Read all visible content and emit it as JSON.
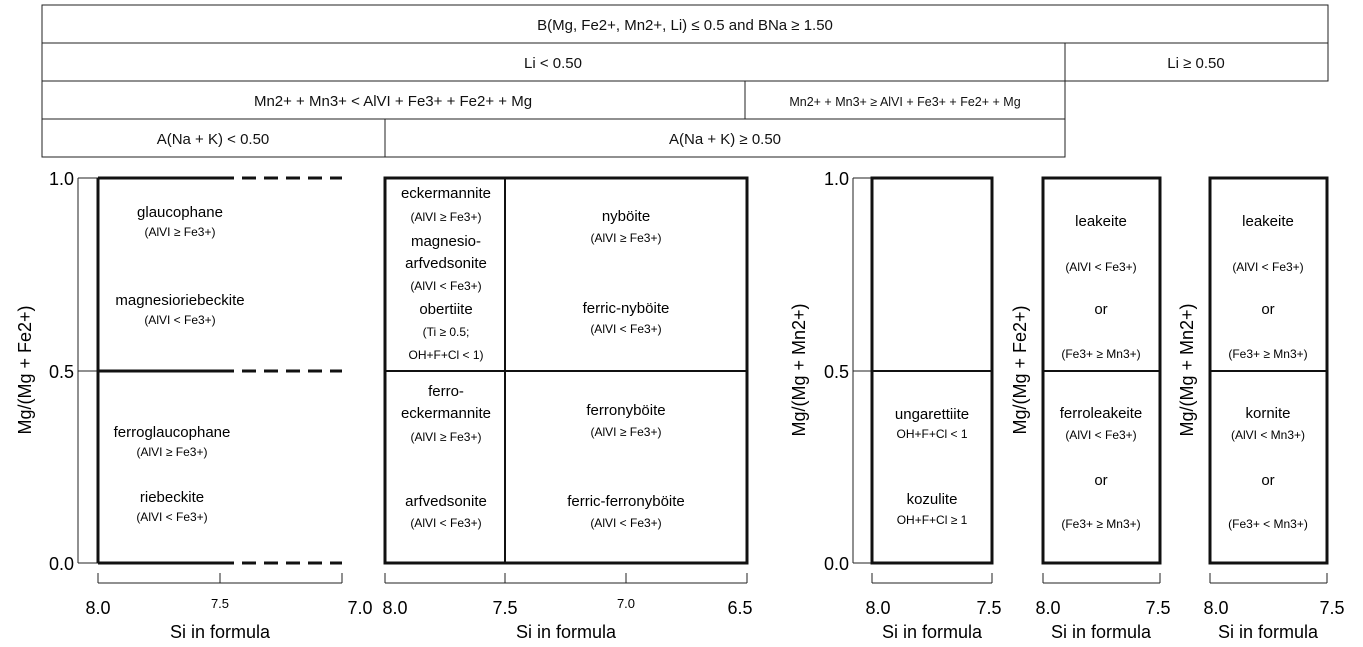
{
  "header": {
    "row1": "B(Mg, Fe2+, Mn2+, Li) ≤ 0.5 and BNa ≥ 1.50",
    "row2_left": "Li < 0.50",
    "row2_right": "Li ≥ 0.50",
    "row3_left": "Mn2+ + Mn3+ < AlVI + Fe3+ + Fe2+ + Mg",
    "row3_right": "Mn2+ + Mn3+ ≥ AlVI + Fe3+ + Fe2+ + Mg",
    "row4_left": "A(Na + K) < 0.50",
    "row4_right": "A(Na + K) ≥ 0.50"
  },
  "ylabels": {
    "fe": "Mg/(Mg + Fe2+)",
    "mn": "Mg/(Mg + Mn2+)"
  },
  "y_ticks": [
    "1.0",
    "0.5",
    "0.0"
  ],
  "xlabel": "Si in formula",
  "panels": {
    "p1": {
      "ticks": [
        "8.0",
        "7.5",
        "7.0"
      ],
      "upper": [
        {
          "name": "glaucophane",
          "cond": "(AlVI ≥ Fe3+)"
        },
        {
          "name": "magnesioriebeckite",
          "cond": "(AlVI < Fe3+)"
        }
      ],
      "lower": [
        {
          "name": "ferroglaucophane",
          "cond": "(AlVI ≥ Fe3+)"
        },
        {
          "name": "riebeckite",
          "cond": "(AlVI < Fe3+)"
        }
      ]
    },
    "p2": {
      "ticks": [
        "8.0",
        "7.5",
        "7.0",
        "6.5"
      ],
      "upper_left": [
        "eckermannite",
        "(AlVI ≥ Fe3+)",
        "magnesio-",
        "arfvedsonite",
        "(AlVI < Fe3+)",
        "obertiite",
        "(Ti ≥ 0.5;",
        "OH+F+Cl < 1)"
      ],
      "lower_left": [
        "ferro-",
        "eckermannite",
        "(AlVI ≥ Fe3+)",
        "arfvedsonite",
        "(AlVI < Fe3+)"
      ],
      "upper_right": [
        {
          "name": "nyböite",
          "cond": "(AlVI ≥ Fe3+)"
        },
        {
          "name": "ferric-nyböite",
          "cond": "(AlVI < Fe3+)"
        }
      ],
      "lower_right": [
        {
          "name": "ferronyböite",
          "cond": "(AlVI ≥ Fe3+)"
        },
        {
          "name": "ferric-ferronyböite",
          "cond": "(AlVI < Fe3+)"
        }
      ]
    },
    "p3": {
      "ticks": [
        "8.0",
        "7.5"
      ],
      "lower": [
        {
          "name": "ungarettiite",
          "cond": "OH+F+Cl < 1"
        },
        {
          "name": "kozulite",
          "cond": "OH+F+Cl ≥ 1"
        }
      ]
    },
    "p4": {
      "ticks": [
        "8.0",
        "7.5"
      ],
      "upper": [
        "leakeite",
        "(AlVI < Fe3+)",
        "or",
        "(Fe3+ ≥ Mn3+)"
      ],
      "lower": [
        "ferroleakeite",
        "(AlVI < Fe3+)",
        "or",
        "(Fe3+ ≥ Mn3+)"
      ]
    },
    "p5": {
      "ticks": [
        "8.0",
        "7.5"
      ],
      "upper": [
        "leakeite",
        "(AlVI < Fe3+)",
        "or",
        "(Fe3+ ≥ Mn3+)"
      ],
      "lower": [
        "kornite",
        "(AlVI < Mn3+)",
        "or",
        "(Fe3+ < Mn3+)"
      ]
    }
  }
}
